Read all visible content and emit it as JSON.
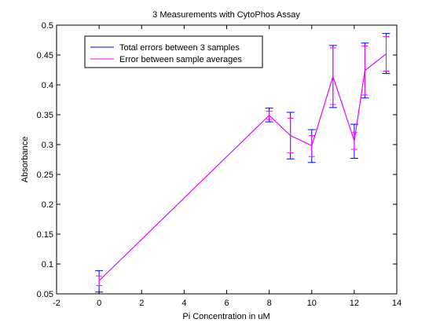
{
  "chart_data": {
    "type": "line",
    "title": "3 Measurements with CytoPhos Assay",
    "xlabel": "Pi Concentration in uM",
    "ylabel": "Absorbance",
    "xlim": [
      -2,
      14
    ],
    "ylim": [
      0.05,
      0.5
    ],
    "xticks": [
      -2,
      0,
      2,
      4,
      6,
      8,
      10,
      12,
      14
    ],
    "xtick_labels": [
      "-2",
      "0",
      "2",
      "4",
      "6",
      "8",
      "10",
      "12",
      "14"
    ],
    "yticks": [
      0.05,
      0.1,
      0.15,
      0.2,
      0.25,
      0.3,
      0.35,
      0.4,
      0.45,
      0.5
    ],
    "ytick_labels": [
      "0.05",
      "0.1",
      "0.15",
      "0.2",
      "0.25",
      "0.3",
      "0.35",
      "0.4",
      "0.45",
      "0.5"
    ],
    "grid": false,
    "legend_position": "top-left",
    "x": [
      0,
      8,
      9,
      10,
      11,
      12,
      12.5,
      13.5
    ],
    "series": [
      {
        "name": "Total errors between 3 samples",
        "color": "#0000ff",
        "y": [
          0.072,
          0.349,
          0.315,
          0.298,
          0.414,
          0.306,
          0.424,
          0.452
        ],
        "err_low": [
          0.053,
          0.338,
          0.276,
          0.27,
          0.362,
          0.277,
          0.378,
          0.419
        ],
        "err_high": [
          0.089,
          0.361,
          0.354,
          0.325,
          0.466,
          0.334,
          0.47,
          0.486
        ]
      },
      {
        "name": "Error between sample averages",
        "color": "#ff00ff",
        "y": [
          0.072,
          0.349,
          0.315,
          0.298,
          0.414,
          0.306,
          0.424,
          0.452
        ],
        "err_low": [
          0.064,
          0.342,
          0.286,
          0.28,
          0.367,
          0.292,
          0.383,
          0.423
        ],
        "err_high": [
          0.08,
          0.356,
          0.344,
          0.315,
          0.462,
          0.32,
          0.465,
          0.481
        ]
      }
    ]
  }
}
